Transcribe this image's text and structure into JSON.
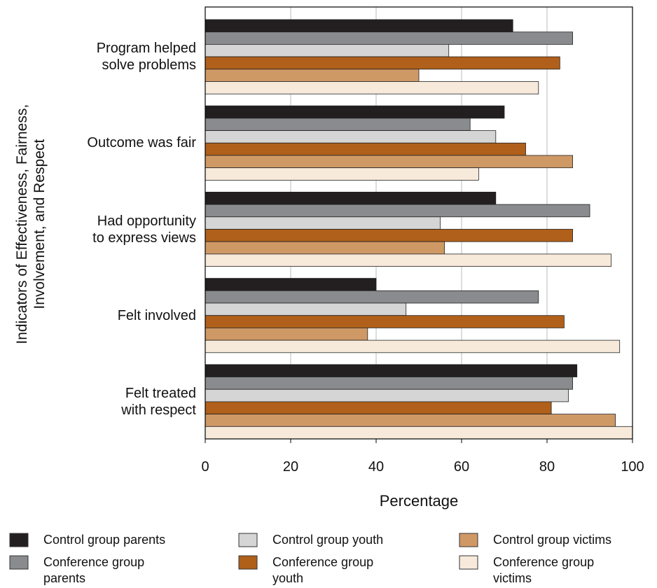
{
  "chart_data": {
    "type": "hbar",
    "x_label": "Percentage",
    "y_label": "Indicators of Effectiveness, Fairness,\nInvolvement, and Respect",
    "categories": [
      "Program helped\nsolve problems",
      "Outcome was fair",
      "Had opportunity\nto express views",
      "Felt involved",
      "Felt treated\nwith respect"
    ],
    "series": [
      {
        "name": "Control group parents",
        "color": "#231f20",
        "values": [
          72,
          70,
          68,
          40,
          87
        ]
      },
      {
        "name": "Conference group\nparents",
        "color": "#8a8b8e",
        "values": [
          86,
          62,
          90,
          78,
          86
        ]
      },
      {
        "name": "Control group youth",
        "color": "#d5d5d5",
        "values": [
          57,
          68,
          55,
          47,
          85
        ]
      },
      {
        "name": "Conference group\nyouth",
        "color": "#b0601a",
        "values": [
          83,
          75,
          86,
          84,
          81
        ]
      },
      {
        "name": "Control group victims",
        "color": "#cf9966",
        "values": [
          50,
          86,
          56,
          38,
          96
        ]
      },
      {
        "name": "Conference group\nvictims",
        "color": "#f7eadb",
        "values": [
          78,
          64,
          95,
          97,
          100
        ]
      }
    ],
    "xlim": [
      0,
      100
    ],
    "xticks": [
      0,
      20,
      40,
      60,
      80,
      100
    ],
    "grid": true,
    "legend": "bottom"
  }
}
